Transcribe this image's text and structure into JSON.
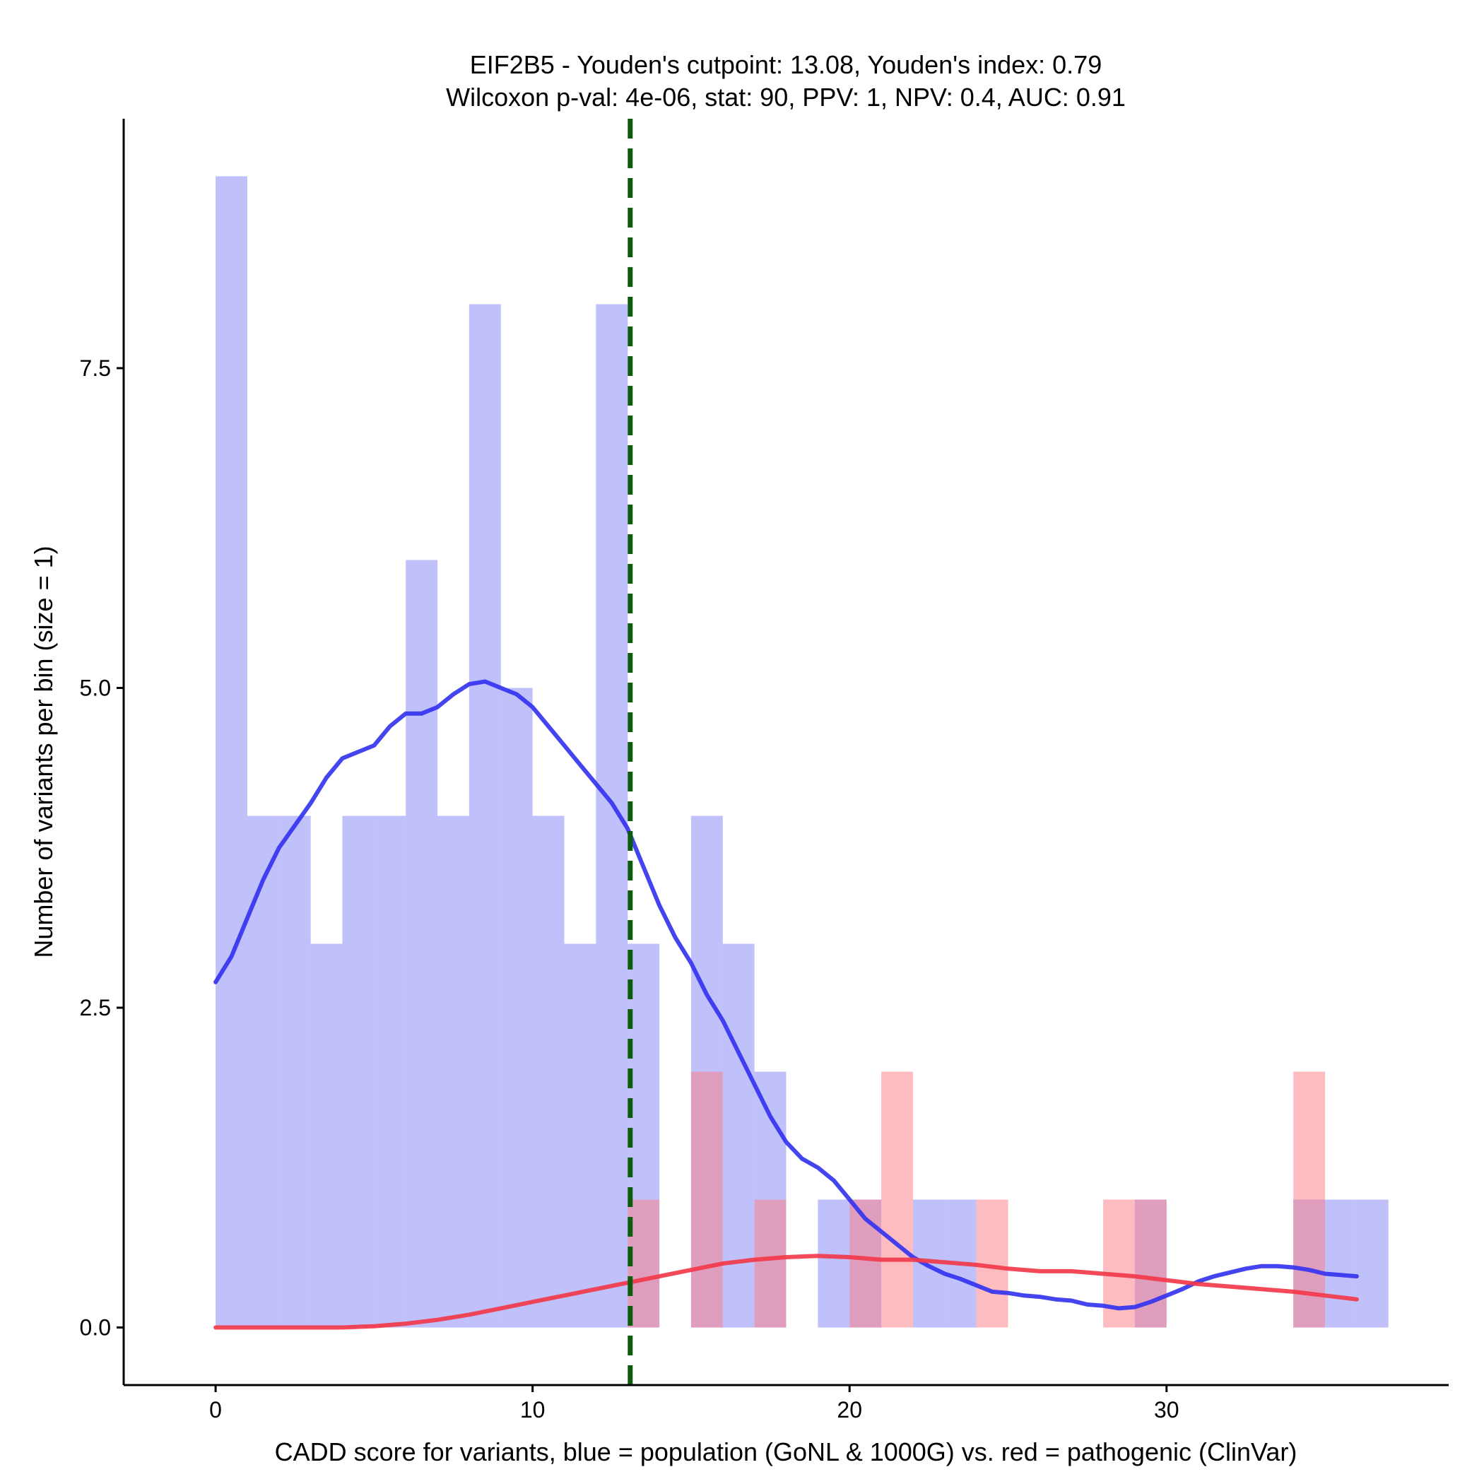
{
  "chart_data": {
    "type": "histogram",
    "title": [
      "EIF2B5 - Youden's cutpoint: 13.08, Youden's index: 0.79",
      "Wilcoxon p-val: 4e-06, stat: 90, PPV: 1, NPV: 0.4, AUC: 0.91"
    ],
    "xlabel": "CADD score for variants, blue = population (GoNL & 1000G) vs. red = pathogenic (ClinVar)",
    "ylabel": "Number of variants per bin (size = 1)",
    "xlim": [
      -2.9,
      38.9
    ],
    "ylim": [
      -0.45,
      9.45
    ],
    "x_ticks": [
      0,
      10,
      20,
      30
    ],
    "x_tick_labels": [
      "0",
      "10",
      "20",
      "30"
    ],
    "y_ticks": [
      0,
      2.5,
      5,
      7.5
    ],
    "y_tick_labels": [
      "0.0",
      "2.5",
      "5.0",
      "7.5"
    ],
    "bin_width": 1,
    "cutpoint": 13.08,
    "series": [
      {
        "name": "population (GoNL & 1000G)",
        "color": "#7b7bf7",
        "opacity": 0.48,
        "bins": [
          {
            "x": 0,
            "count": 9
          },
          {
            "x": 1,
            "count": 4
          },
          {
            "x": 2,
            "count": 4
          },
          {
            "x": 3,
            "count": 3
          },
          {
            "x": 4,
            "count": 4
          },
          {
            "x": 5,
            "count": 4
          },
          {
            "x": 6,
            "count": 6
          },
          {
            "x": 7,
            "count": 4
          },
          {
            "x": 8,
            "count": 8
          },
          {
            "x": 9,
            "count": 5
          },
          {
            "x": 10,
            "count": 4
          },
          {
            "x": 11,
            "count": 3
          },
          {
            "x": 12,
            "count": 8
          },
          {
            "x": 13,
            "count": 3
          },
          {
            "x": 15,
            "count": 4
          },
          {
            "x": 16,
            "count": 3
          },
          {
            "x": 17,
            "count": 2
          },
          {
            "x": 19,
            "count": 1
          },
          {
            "x": 20,
            "count": 1
          },
          {
            "x": 22,
            "count": 1
          },
          {
            "x": 23,
            "count": 1
          },
          {
            "x": 29,
            "count": 1
          },
          {
            "x": 34,
            "count": 1
          },
          {
            "x": 35,
            "count": 1
          },
          {
            "x": 36,
            "count": 1
          }
        ]
      },
      {
        "name": "pathogenic (ClinVar)",
        "color": "#fc7f86",
        "opacity": 0.52,
        "bins": [
          {
            "x": 13,
            "count": 1
          },
          {
            "x": 15,
            "count": 2
          },
          {
            "x": 17,
            "count": 1
          },
          {
            "x": 20,
            "count": 1
          },
          {
            "x": 21,
            "count": 2
          },
          {
            "x": 24,
            "count": 1
          },
          {
            "x": 28,
            "count": 1
          },
          {
            "x": 29,
            "count": 1
          },
          {
            "x": 34,
            "count": 2
          }
        ]
      }
    ],
    "density_curves": [
      {
        "name": "population density (scaled)",
        "color": "#3434f0",
        "points": [
          [
            0,
            2.7
          ],
          [
            0.5,
            2.9
          ],
          [
            1,
            3.2
          ],
          [
            1.5,
            3.5
          ],
          [
            2,
            3.75
          ],
          [
            3,
            4.1
          ],
          [
            3.5,
            4.3
          ],
          [
            4,
            4.45
          ],
          [
            4.5,
            4.5
          ],
          [
            5,
            4.55
          ],
          [
            5.5,
            4.7
          ],
          [
            6,
            4.8
          ],
          [
            6.5,
            4.8
          ],
          [
            7,
            4.85
          ],
          [
            7.5,
            4.95
          ],
          [
            8,
            5.03
          ],
          [
            8.5,
            5.05
          ],
          [
            9,
            5.0
          ],
          [
            9.5,
            4.95
          ],
          [
            10,
            4.85
          ],
          [
            10.5,
            4.7
          ],
          [
            11,
            4.55
          ],
          [
            11.5,
            4.4
          ],
          [
            12,
            4.25
          ],
          [
            12.5,
            4.1
          ],
          [
            13,
            3.9
          ],
          [
            13.5,
            3.6
          ],
          [
            14,
            3.3
          ],
          [
            14.5,
            3.05
          ],
          [
            15,
            2.85
          ],
          [
            15.5,
            2.6
          ],
          [
            16,
            2.4
          ],
          [
            16.5,
            2.15
          ],
          [
            17,
            1.9
          ],
          [
            17.5,
            1.65
          ],
          [
            18,
            1.45
          ],
          [
            18.5,
            1.32
          ],
          [
            19,
            1.25
          ],
          [
            19.5,
            1.15
          ],
          [
            20,
            1.0
          ],
          [
            20.5,
            0.85
          ],
          [
            21,
            0.75
          ],
          [
            21.5,
            0.65
          ],
          [
            22,
            0.55
          ],
          [
            22.5,
            0.48
          ],
          [
            23,
            0.42
          ],
          [
            23.5,
            0.38
          ],
          [
            24,
            0.33
          ],
          [
            24.5,
            0.28
          ],
          [
            25,
            0.27
          ],
          [
            25.5,
            0.25
          ],
          [
            26,
            0.24
          ],
          [
            26.5,
            0.22
          ],
          [
            27,
            0.21
          ],
          [
            27.5,
            0.18
          ],
          [
            28,
            0.17
          ],
          [
            28.5,
            0.15
          ],
          [
            29,
            0.16
          ],
          [
            29.5,
            0.2
          ],
          [
            30,
            0.25
          ],
          [
            30.5,
            0.3
          ],
          [
            31,
            0.36
          ],
          [
            31.5,
            0.4
          ],
          [
            32,
            0.43
          ],
          [
            32.5,
            0.46
          ],
          [
            33,
            0.48
          ],
          [
            33.5,
            0.48
          ],
          [
            34,
            0.47
          ],
          [
            34.5,
            0.45
          ],
          [
            35,
            0.42
          ],
          [
            35.5,
            0.41
          ],
          [
            36,
            0.4
          ]
        ]
      },
      {
        "name": "pathogenic density (scaled)",
        "color": "#f23a4a",
        "points": [
          [
            0,
            0
          ],
          [
            2,
            0
          ],
          [
            4,
            0
          ],
          [
            5,
            0.01
          ],
          [
            6,
            0.03
          ],
          [
            7,
            0.06
          ],
          [
            8,
            0.1
          ],
          [
            9,
            0.15
          ],
          [
            10,
            0.2
          ],
          [
            11,
            0.25
          ],
          [
            12,
            0.3
          ],
          [
            13,
            0.35
          ],
          [
            14,
            0.4
          ],
          [
            15,
            0.45
          ],
          [
            16,
            0.5
          ],
          [
            17,
            0.53
          ],
          [
            18,
            0.55
          ],
          [
            19,
            0.56
          ],
          [
            20,
            0.55
          ],
          [
            21,
            0.53
          ],
          [
            22,
            0.53
          ],
          [
            23,
            0.51
          ],
          [
            24,
            0.49
          ],
          [
            25,
            0.46
          ],
          [
            26,
            0.44
          ],
          [
            27,
            0.44
          ],
          [
            28,
            0.42
          ],
          [
            29,
            0.4
          ],
          [
            30,
            0.37
          ],
          [
            31,
            0.34
          ],
          [
            32,
            0.32
          ],
          [
            33,
            0.3
          ],
          [
            34,
            0.28
          ],
          [
            35,
            0.25
          ],
          [
            36,
            0.22
          ]
        ]
      }
    ]
  }
}
